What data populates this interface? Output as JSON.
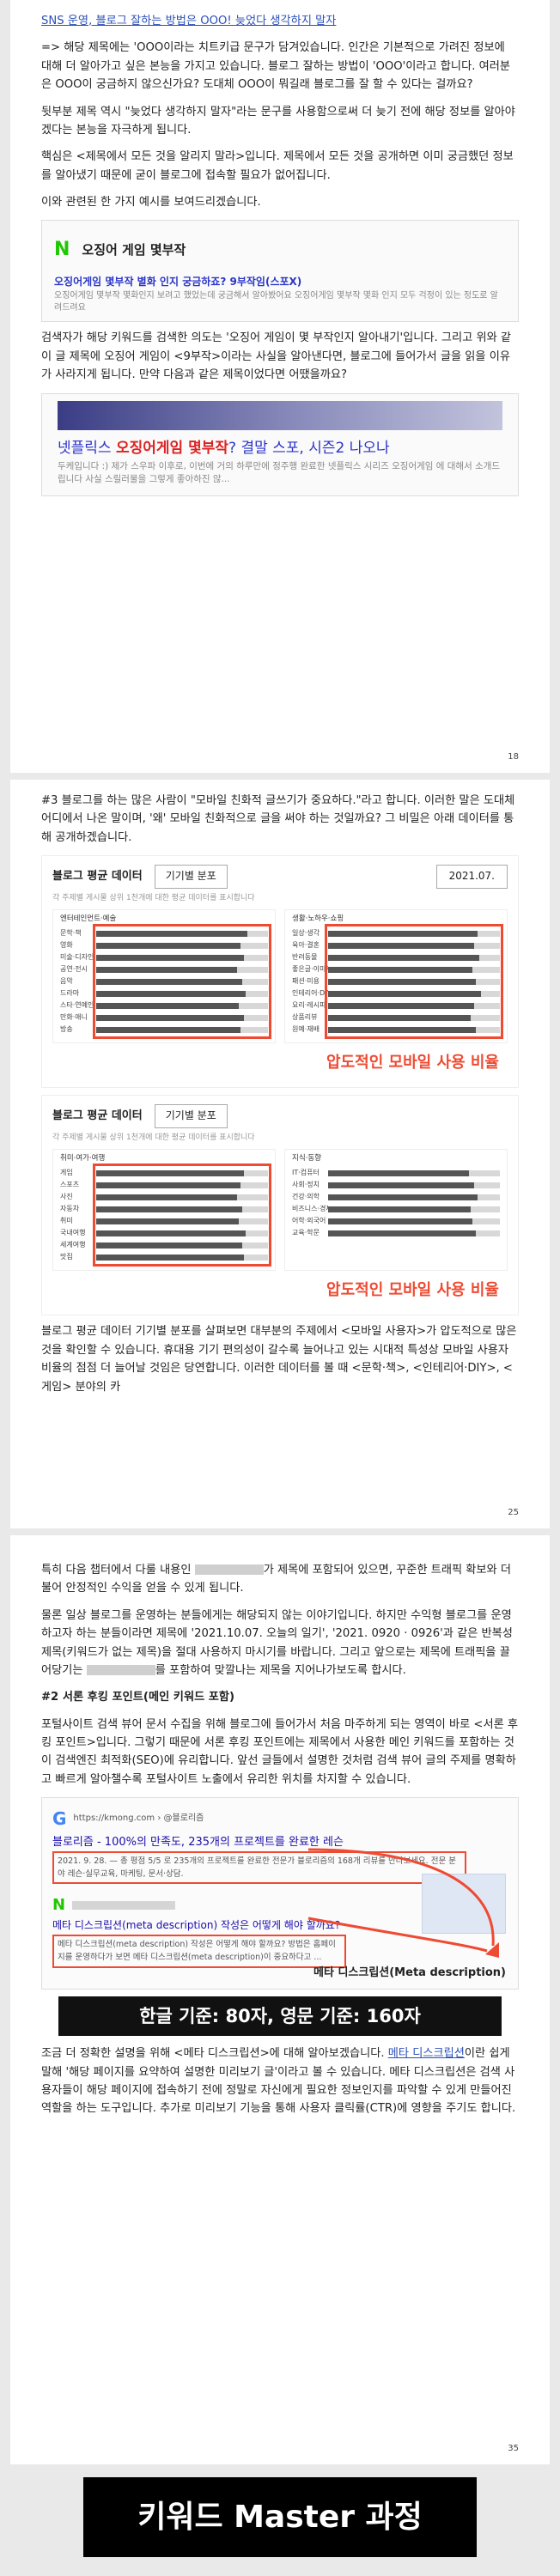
{
  "page1": {
    "line1": "SNS 운영, 블로그 잘하는 방법은 OOO! 늦었다 생각하지 말자",
    "para1": "=> 해당 제목에는 'OOO이라는 치트키급 문구가 담겨있습니다. 인간은 기본적으로 가려진 정보에 대해 더 알아가고 싶은 본능을 가지고 있습니다. 블로그 잘하는 방법이 'OOO'이라고 합니다. 여러분은 OOO이 궁금하지 않으신가요? 도대체 OOO이 뭐길래 블로그를 잘 할 수 있다는 걸까요?",
    "para2": "뒷부분 제목 역시 \"늦었다 생각하지 말자\"라는 문구를 사용함으로써 더 늦기 전에 해당 정보를 알아야겠다는 본능을 자극하게 됩니다.",
    "para3": "핵심은 <제목에서 모든 것을 알리지 말라>입니다. 제목에서 모든 것을 공개하면 이미 궁금했던 정보를 알아냈기 때문에 굳이 블로그에 접속할 필요가 없어집니다.",
    "para4": "이와 관련된 한 가지 예시를 보여드리겠습니다.",
    "search_brand": "N",
    "search_query": "오징어 게임 몇부작",
    "result_title": "오징어게임 몇부작 별화 인지 궁금하죠? 9부작임(스포X)",
    "result_desc": "오징어게임 몇부작 몇화인지 보려고 했었는데 궁금해서 알아봤어요 오징어게임 몇부작 몇화 인지 모두 걱정이 있는 정도로 알려드려요",
    "para5": "검색자가 해당 키워드를 검색한 의도는 '오징어 게임이 몇 부작인지 알아내기'입니다. 그리고 위와 같이 글 제목에 오징어 게임이 <9부작>이라는 사실을 알아낸다면, 블로그에 들어가서 글을 읽을 이유가 사라지게 됩니다. 만약 다음과 같은 제목이었다면 어땠을까요?",
    "card2_title_pre": "넷플릭스 ",
    "card2_title_bold": "오징어게임 몇부작",
    "card2_title_post": "? 결말 스포, 시즌2 나오나",
    "card2_desc": "두케입니다 :) 제가 스우파 이후로, 이번에 거의 하루만에 정주행 완료한 넷플릭스 시리즈 오징어게임 에 대해서 소개드립니다 사실 스릴러물을 그렇게 좋아하진 않...",
    "page_number": "18"
  },
  "page2": {
    "para1": "#3 블로그를 하는 많은 사람이 \"모바일 친화적 글쓰기가 중요하다.\"라고 합니다. 이러한 말은 도대체 어디에서 나온 말이며, '왜' 모바일 친화적으로 글을 써야 하는 것일까요? 그 비밀은 아래 데이터를 통해 공개하겠습니다.",
    "chart_title": "블로그 평균 데이터",
    "chart_pill": "기기별 분포",
    "chart_date": "2021.07.",
    "chart_note": "각 주제별 게시물 상위 1천개에 대한 평균 데이터를 표시합니다",
    "chart1_panel1": "엔터테인먼트·예술",
    "chart1_panel2": "생활·노하우·쇼핑",
    "chart2_panel1": "취미·여가·여행",
    "chart2_panel2": "지식·동향",
    "callout": "압도적인 모바일 사용 비율",
    "para2": "블로그 평균 데이터 기기별 분포를 살펴보면 대부분의 주제에서 <모바일 사용자>가 압도적으로 많은 것을 확인할 수 있습니다. 휴대용 기기 편의성이 갈수록 늘어나고 있는 시대적 특성상 모바일 사용자 비율의 점점 더 늘어날 것임은 당연합니다. 이러한 데이터를 볼 때 <문학·책>, <인테리어·DIY>, <게임> 분야의 카",
    "page_number": "25"
  },
  "page3": {
    "para1_pre": "특히 다음 챕터에서 다룰 내용인 ",
    "para1_post": "가 제목에 포함되어 있으면, 꾸준한 트래픽 확보와 더불어 안정적인 수익을 얻을 수 있게 됩니다.",
    "para2_pre": "물론 일상 블로그를 운영하는 분들에게는 해당되지 않는 이야기입니다. 하지만 수익형 블로그를 운영하고자 하는 분들이라면 제목에 '2021.10.07. 오늘의 일기', '2021. 0920 · 0926'과 같은 반복성 제목(키워드가 없는 제목)을 절대 사용하지 마시기를 바랍니다. 그리고 앞으로는 제목에 트래픽을 끌어당기는 ",
    "para2_post": "를 포함하여 맞깔나는 제목을 지어나가보도록 합시다.",
    "heading": "#2 서론 후킹 포인트(메인 키워드 포함)",
    "para3": "포털사이트 검색 뷰어 문서 수집을 위해 블로그에 들어가서 처음 마주하게 되는 영역이 바로 <서론 후킹 포인트>입니다. 그렇기 때문에 서론 후킹 포인트에는 제목에서 사용한 메인 키워드를 포함하는 것이 검색엔진 최적화(SEO)에 유리합니다. 앞선 글들에서 설명한 것처럼 검색 뷰어 글의 주제를 명확하고 빠르게 알아챌수록 포털사이트 노출에서 유리한 위치를 차지할 수 있습니다.",
    "meta_google": "G",
    "meta_url": "https://kmong.com › @블로리즘",
    "meta_title1": "블로리즘 - 100%의 만족도, 235개의 프로젝트를 완료한 레슨",
    "meta_desc1": "2021. 9. 28. — 총 평점 5/5 로 235개의 프로젝트를 완료한 전문가 블로리즘의 168개 리뷰를 만나보세요. 전문 분야 레슨·실무교육, 마케팅, 문서·상담.",
    "meta_naver": "N",
    "meta_title2": "메타 디스크립션(meta description) 작성은 어떻게 해야 할까요?",
    "meta_desc2": "메타 디스크립션(meta description) 작성은 어떻게 해야 할까요? 방법은 홈페이지를 운영하다가 보면 메타 디스크립션(meta description)이 중요하다고 ...",
    "meta_label": "메타 디스크립션(Meta description)",
    "banner": "한글 기준: 80자, 영문 기준: 160자",
    "para4_pre": "조금 더 정확한 설명을 위해 <메타 디스크립션>에 대해 알아보겠습니다. ",
    "para4_link": "메타 디스크립션",
    "para4_post": "이란 쉽게 말해 '해당 페이지를 요약하여 설명한 미리보기 글'이라고 볼 수 있습니다. 메타 디스크립션은 검색 사용자들이 해당 페이지에 접속하기 전에 정말로 자신에게 필요한 정보인지를 파악할 수 있게 만들어진 역할을 하는 도구입니다. 추가로 미리보기 기능을 통해 사용자 클릭률(CTR)에 영향을 주기도 합니다.",
    "page_number": "35"
  },
  "footer": "키워드 Master 과정",
  "chart_data": [
    {
      "type": "bar",
      "title": "블로그 평균 데이터",
      "categories": [
        "문학·책",
        "영화",
        "미술·디자인",
        "공연·전시",
        "음악",
        "드라마",
        "스타·연예인",
        "만화·애니",
        "방송"
      ],
      "values": [
        0.88,
        0.84,
        0.86,
        0.82,
        0.85,
        0.87,
        0.83,
        0.86,
        0.84
      ]
    },
    {
      "type": "bar",
      "categories": [
        "일상·생각",
        "육아·결혼",
        "반려동물",
        "좋은글·이미지",
        "패션·미용",
        "인테리어·DIY",
        "요리·레시피",
        "상품리뷰",
        "원예·재배"
      ],
      "values": [
        0.87,
        0.85,
        0.88,
        0.84,
        0.86,
        0.89,
        0.85,
        0.83,
        0.86
      ]
    },
    {
      "type": "bar",
      "categories": [
        "게임",
        "스포츠",
        "사진",
        "자동차",
        "취미",
        "국내여행",
        "세계여행",
        "맛집"
      ],
      "values": [
        0.86,
        0.84,
        0.82,
        0.85,
        0.83,
        0.87,
        0.85,
        0.86
      ]
    },
    {
      "type": "bar",
      "categories": [
        "IT·컴퓨터",
        "사회·정치",
        "건강·의학",
        "비즈니스·경제",
        "어학·외국어",
        "교육·학문"
      ],
      "values": [
        0.82,
        0.85,
        0.87,
        0.83,
        0.84,
        0.86
      ]
    }
  ]
}
